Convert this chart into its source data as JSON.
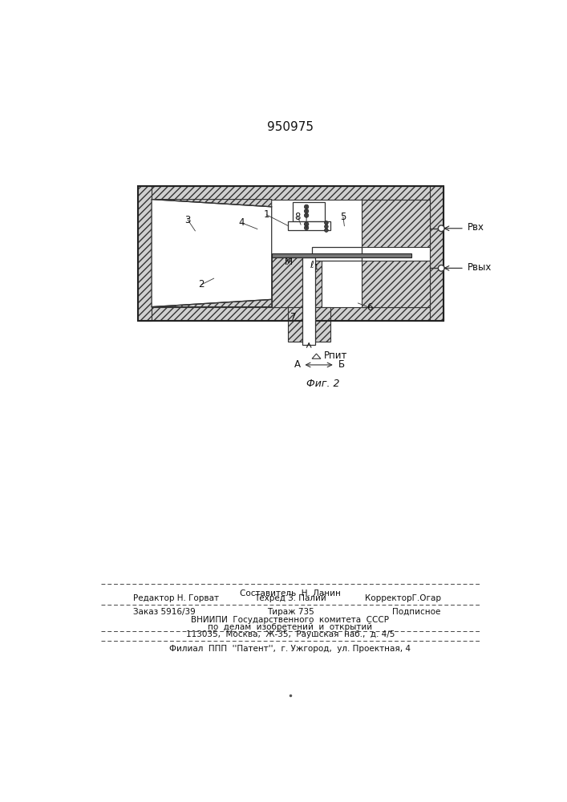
{
  "title": "950975",
  "fig_label": "Фиг. 2",
  "p_vx_text": "Pвх",
  "p_vyx_text": "Pвых",
  "p_pit_text": "Pпит",
  "footer_line1_center": "Составитель  Н. Ланин",
  "footer_line2_left": "Редактор Н. Горват",
  "footer_line2_mid": "Техред З. Палий",
  "footer_line2_right": "КорректорГ.Огар",
  "footer_line3_left": "Заказ 5916/39",
  "footer_line3_mid": "Тираж 735",
  "footer_line3_right": "Подписное",
  "footer_line4": "ВНИИПИ  Государственного  комитета  СССР",
  "footer_line5": "по  делам  изобретений  и  открытий",
  "footer_line6": "113035,  Москва,  Ж-35,  Раушская  наб.,  д. 4/5",
  "footer_line7": "Филиал  ППП  ''Патент'',  г. Ужгород,  ул. Проектная, 4"
}
